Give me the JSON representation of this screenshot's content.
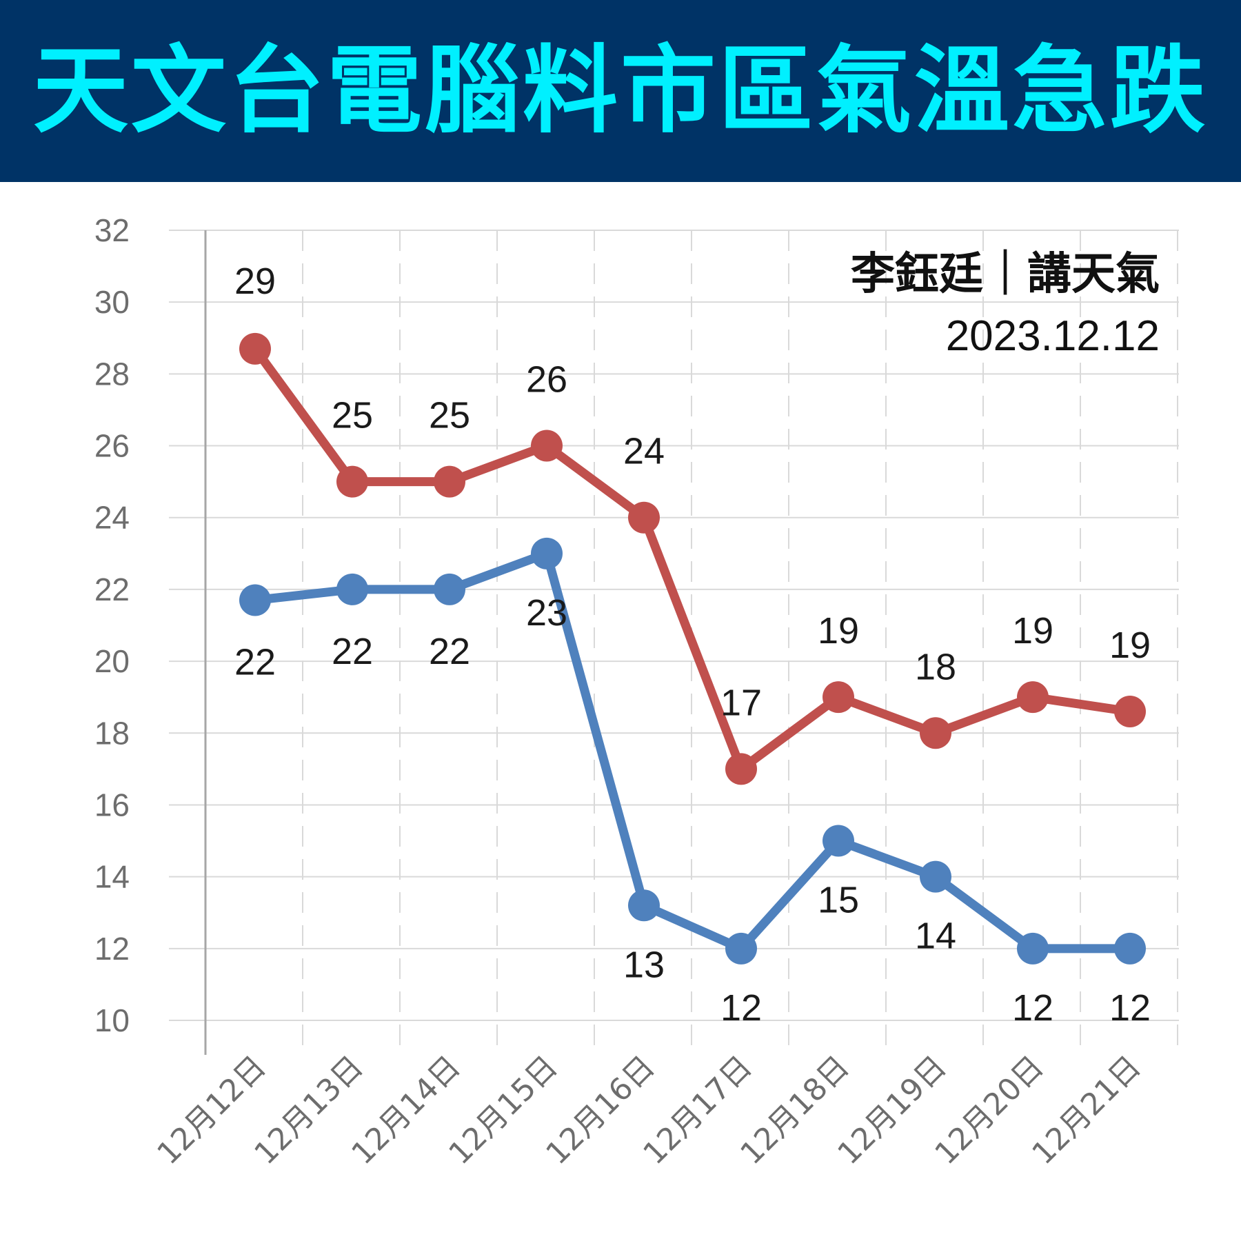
{
  "header": {
    "title": "天文台電腦料市區氣溫急跌"
  },
  "credit": {
    "author": "李鈺廷｜講天氣",
    "date": "2023.12.12"
  },
  "colors": {
    "banner_bg": "#003366",
    "title_text": "#00f0ff",
    "high_series": "#c0504d",
    "low_series": "#4f81bd"
  },
  "chart_data": {
    "type": "line",
    "title": "",
    "xlabel": "",
    "ylabel": "",
    "ylim": [
      10,
      32
    ],
    "yticks": [
      10,
      12,
      14,
      16,
      18,
      20,
      22,
      24,
      26,
      28,
      30,
      32
    ],
    "grid": true,
    "categories": [
      "12月12日",
      "12月13日",
      "12月14日",
      "12月15日",
      "12月16日",
      "12月17日",
      "12月18日",
      "12月19日",
      "12月20日",
      "12月21日"
    ],
    "series": [
      {
        "id": "high",
        "color": "#c0504d",
        "values": [
          28.7,
          25,
          25,
          26,
          24,
          17,
          19,
          18,
          19,
          18.6
        ],
        "labels": [
          "29",
          "25",
          "25",
          "26",
          "24",
          "17",
          "19",
          "18",
          "19",
          "19"
        ]
      },
      {
        "id": "low",
        "color": "#4f81bd",
        "values": [
          21.7,
          22,
          22,
          23,
          13.2,
          12,
          15,
          14,
          12,
          12
        ],
        "labels": [
          "22",
          "22",
          "22",
          "23",
          "13",
          "12",
          "15",
          "14",
          "12",
          "12"
        ]
      }
    ]
  }
}
